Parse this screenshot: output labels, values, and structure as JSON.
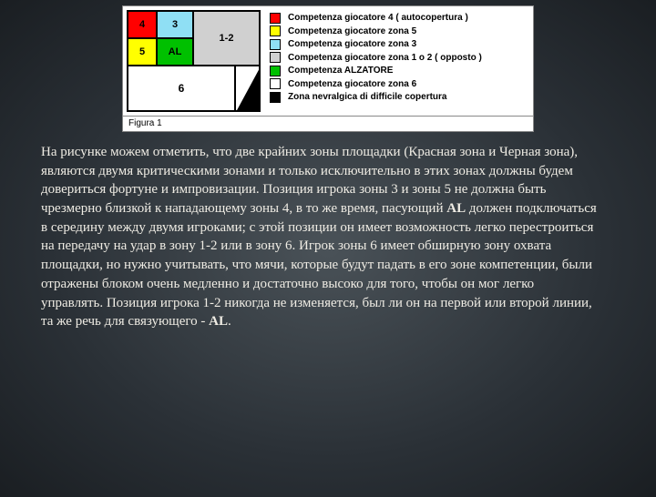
{
  "figure": {
    "caption": "Figura 1",
    "court": {
      "zones": {
        "z4": {
          "label": "4",
          "bg": "#ff0000"
        },
        "z3": {
          "label": "3",
          "bg": "#8fdff4"
        },
        "z12": {
          "label": "1-2",
          "bg": "#d0d0d0"
        },
        "z5": {
          "label": "5",
          "bg": "#ffff00"
        },
        "zAL": {
          "label": "AL",
          "bg": "#00c000"
        },
        "z6": {
          "label": "6",
          "bg": "#ffffff"
        }
      }
    },
    "legend": [
      {
        "color": "#ff0000",
        "text": "Competenza giocatore 4 ( autocopertura )"
      },
      {
        "color": "#ffff00",
        "text": "Competenza giocatore zona 5"
      },
      {
        "color": "#8fdff4",
        "text": "Competenza giocatore zona 3"
      },
      {
        "color": "#d0d0d0",
        "text": "Competenza giocatore zona 1 o 2 ( opposto )"
      },
      {
        "color": "#00c000",
        "text": "Competenza ALZATORE"
      },
      {
        "color": "#ffffff",
        "text": "Competenza giocatore zona 6"
      },
      {
        "color": "#000000",
        "text": "Zona nevralgica di difficile copertura"
      }
    ]
  },
  "paragraph": {
    "t1": "На рисунке можем отметить, что две крайних зоны площадки (Красная зона и Черная зона), являются двумя критическими зонами и только исключительно в этих зонах должны будем довериться фортуне и импровизации. Позиция игрока зоны 3 и зоны 5 не должна быть чрезмерно близкой к нападающему зоны 4, в то же время, пасующий ",
    "b1": "AL",
    "t2": " должен подключаться в середину между двумя игроками; с этой позиции он имеет возможность легко перестроиться на передачу на удар в зону 1-2 или в зону 6. Игрок зоны 6 имеет обширную зону охвата площадки, но нужно учитывать, что мячи, которые будут падать в его зоне компетенции, были отражены блоком очень медленно и достаточно высоко для того, чтобы он мог легко управлять.  Позиция игрока 1-2 никогда не изменяется, был ли он на первой или второй линии, та же речь для связующего - ",
    "b2": "AL",
    "t3": "."
  }
}
